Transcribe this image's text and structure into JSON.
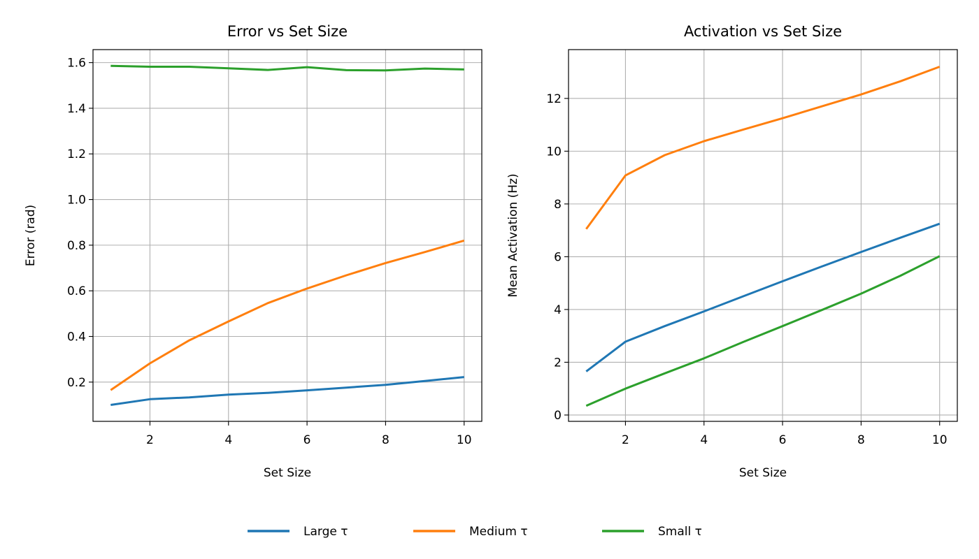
{
  "legend": {
    "placement": "bottom-center",
    "entries": [
      {
        "label": "Large τ",
        "color": "#1f77b4"
      },
      {
        "label": "Medium τ",
        "color": "#ff7f0e"
      },
      {
        "label": "Small τ",
        "color": "#2ca02c"
      }
    ]
  },
  "chart_data": [
    {
      "type": "line",
      "title": "Error vs Set Size",
      "xlabel": "Set Size",
      "ylabel": "Error (rad)",
      "xlim": [
        0.55,
        10.45
      ],
      "ylim": [
        0.028,
        1.657
      ],
      "xticks": [
        2,
        4,
        6,
        8,
        10
      ],
      "yticks": [
        0.2,
        0.4,
        0.6,
        0.8,
        1.0,
        1.2,
        1.4,
        1.6
      ],
      "ytick_labels": [
        "0.2",
        "0.4",
        "0.6",
        "0.8",
        "1.0",
        "1.2",
        "1.4",
        "1.6"
      ],
      "grid": true,
      "x": [
        1,
        2,
        3,
        4,
        5,
        6,
        7,
        8,
        9,
        10
      ],
      "series": [
        {
          "name": "Large τ",
          "color": "#1f77b4",
          "values": [
            0.1,
            0.125,
            0.133,
            0.145,
            0.153,
            0.164,
            0.176,
            0.188,
            0.205,
            0.222
          ]
        },
        {
          "name": "Medium τ",
          "color": "#ff7f0e",
          "values": [
            0.165,
            0.282,
            0.383,
            0.466,
            0.546,
            0.61,
            0.668,
            0.722,
            0.77,
            0.82
          ]
        },
        {
          "name": "Small τ",
          "color": "#2ca02c",
          "values": [
            1.586,
            1.582,
            1.582,
            1.575,
            1.568,
            1.58,
            1.567,
            1.566,
            1.574,
            1.57
          ]
        }
      ]
    },
    {
      "type": "line",
      "title": "Activation vs Set Size",
      "xlabel": "Set Size",
      "ylabel": "Mean Activation (Hz)",
      "xlim": [
        0.55,
        10.45
      ],
      "ylim": [
        -0.24,
        13.85
      ],
      "xticks": [
        2,
        4,
        6,
        8,
        10
      ],
      "yticks": [
        0,
        2,
        4,
        6,
        8,
        10,
        12
      ],
      "ytick_labels": [
        "0",
        "2",
        "4",
        "6",
        "8",
        "10",
        "12"
      ],
      "grid": true,
      "x": [
        1,
        2,
        3,
        4,
        5,
        6,
        7,
        8,
        9,
        10
      ],
      "series": [
        {
          "name": "Large τ",
          "color": "#1f77b4",
          "values": [
            1.65,
            2.78,
            3.37,
            3.93,
            4.5,
            5.07,
            5.63,
            6.18,
            6.72,
            7.25
          ]
        },
        {
          "name": "Medium τ",
          "color": "#ff7f0e",
          "values": [
            7.05,
            9.08,
            9.85,
            10.38,
            10.82,
            11.25,
            11.7,
            12.15,
            12.65,
            13.2
          ]
        },
        {
          "name": "Small τ",
          "color": "#2ca02c",
          "values": [
            0.35,
            1.0,
            1.58,
            2.15,
            2.77,
            3.37,
            3.98,
            4.6,
            5.28,
            6.02
          ]
        }
      ]
    }
  ]
}
